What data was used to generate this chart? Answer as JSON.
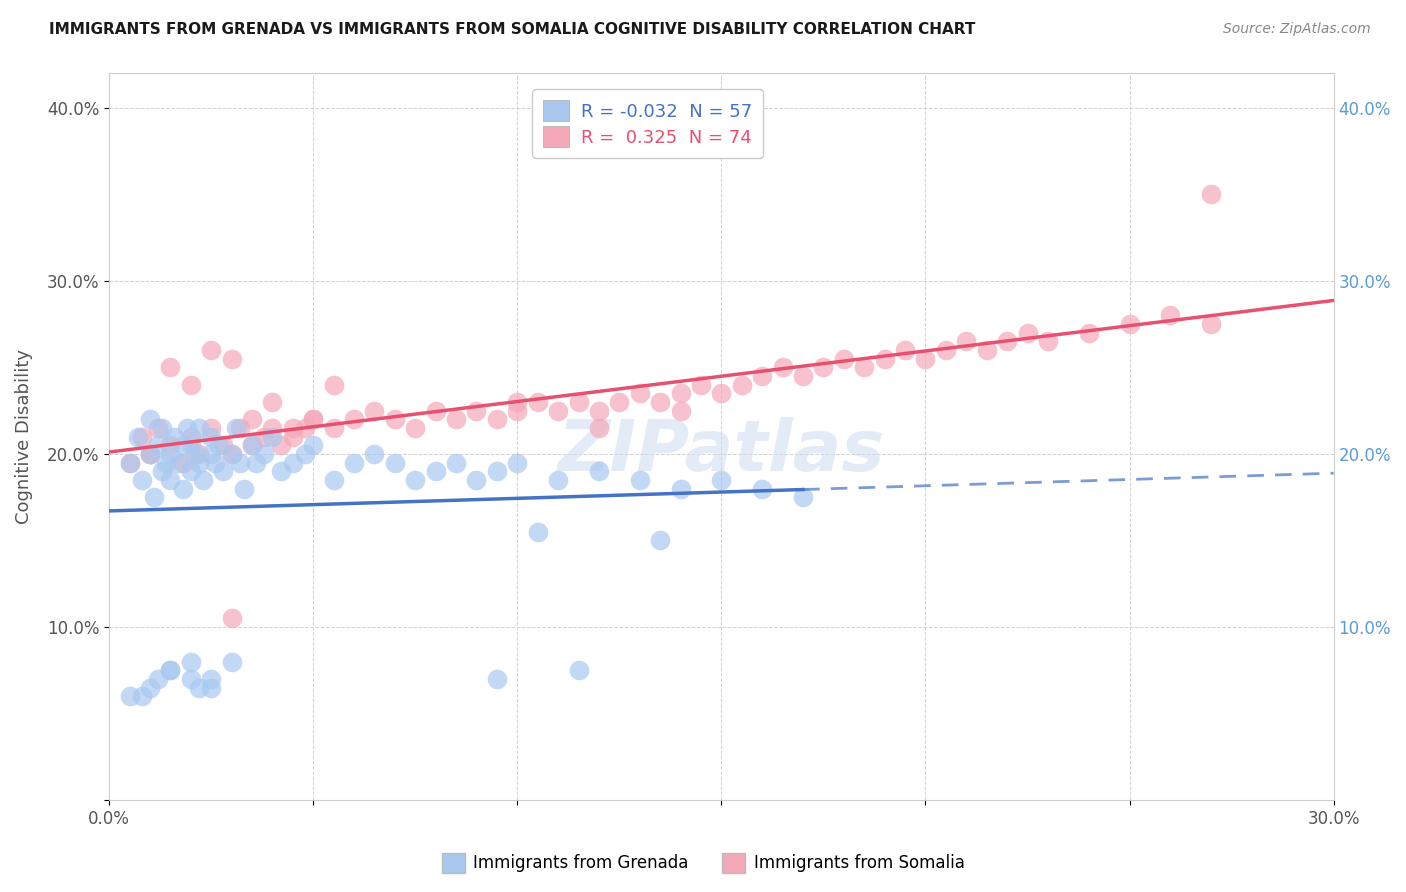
{
  "title": "IMMIGRANTS FROM GRENADA VS IMMIGRANTS FROM SOMALIA COGNITIVE DISABILITY CORRELATION CHART",
  "source_text": "Source: ZipAtlas.com",
  "ylabel": "Cognitive Disability",
  "x_min": 0.0,
  "x_max": 0.3,
  "y_min": 0.0,
  "y_max": 0.42,
  "x_ticks": [
    0.0,
    0.05,
    0.1,
    0.15,
    0.2,
    0.25,
    0.3
  ],
  "y_ticks": [
    0.0,
    0.1,
    0.2,
    0.3,
    0.4
  ],
  "legend_labels": [
    "Immigrants from Grenada",
    "Immigrants from Somalia"
  ],
  "R_grenada": -0.032,
  "N_grenada": 57,
  "R_somalia": 0.325,
  "N_somalia": 74,
  "color_grenada": "#a8c8f0",
  "color_somalia": "#f5a8b8",
  "line_color_grenada": "#4472c4",
  "line_color_somalia": "#e85070",
  "watermark": "ZIPatlas",
  "grenada_x": [
    0.005,
    0.007,
    0.008,
    0.01,
    0.01,
    0.011,
    0.012,
    0.013,
    0.013,
    0.014,
    0.015,
    0.015,
    0.016,
    0.017,
    0.018,
    0.018,
    0.019,
    0.02,
    0.02,
    0.021,
    0.022,
    0.022,
    0.023,
    0.025,
    0.025,
    0.026,
    0.027,
    0.028,
    0.03,
    0.031,
    0.032,
    0.033,
    0.035,
    0.036,
    0.038,
    0.04,
    0.042,
    0.045,
    0.048,
    0.05,
    0.055,
    0.06,
    0.065,
    0.07,
    0.075,
    0.08,
    0.085,
    0.09,
    0.095,
    0.1,
    0.11,
    0.12,
    0.13,
    0.14,
    0.15,
    0.16,
    0.17
  ],
  "grenada_y": [
    0.195,
    0.21,
    0.185,
    0.2,
    0.22,
    0.175,
    0.205,
    0.19,
    0.215,
    0.195,
    0.2,
    0.185,
    0.21,
    0.195,
    0.205,
    0.18,
    0.215,
    0.19,
    0.205,
    0.2,
    0.195,
    0.215,
    0.185,
    0.2,
    0.21,
    0.195,
    0.205,
    0.19,
    0.2,
    0.215,
    0.195,
    0.18,
    0.205,
    0.195,
    0.2,
    0.21,
    0.19,
    0.195,
    0.2,
    0.205,
    0.185,
    0.195,
    0.2,
    0.195,
    0.185,
    0.19,
    0.195,
    0.185,
    0.19,
    0.195,
    0.185,
    0.19,
    0.185,
    0.18,
    0.185,
    0.18,
    0.175
  ],
  "grenada_y_low": [
    0.06,
    0.065,
    0.07,
    0.075,
    0.08,
    0.065,
    0.07,
    0.06,
    0.075,
    0.07,
    0.065,
    0.08,
    0.07,
    0.075,
    0.15,
    0.155
  ],
  "grenada_x_low": [
    0.005,
    0.01,
    0.012,
    0.015,
    0.02,
    0.022,
    0.025,
    0.008,
    0.015,
    0.02,
    0.025,
    0.03,
    0.095,
    0.115,
    0.135,
    0.105
  ],
  "somalia_x": [
    0.005,
    0.008,
    0.01,
    0.012,
    0.015,
    0.018,
    0.02,
    0.022,
    0.025,
    0.028,
    0.03,
    0.032,
    0.035,
    0.038,
    0.04,
    0.042,
    0.045,
    0.048,
    0.05,
    0.055,
    0.06,
    0.065,
    0.07,
    0.075,
    0.08,
    0.085,
    0.09,
    0.095,
    0.1,
    0.105,
    0.11,
    0.115,
    0.12,
    0.125,
    0.13,
    0.135,
    0.14,
    0.145,
    0.15,
    0.155,
    0.16,
    0.165,
    0.17,
    0.175,
    0.18,
    0.185,
    0.19,
    0.195,
    0.2,
    0.205,
    0.21,
    0.215,
    0.22,
    0.225,
    0.23,
    0.24,
    0.25,
    0.26,
    0.27,
    0.01,
    0.015,
    0.02,
    0.025,
    0.03,
    0.035,
    0.04,
    0.045,
    0.05,
    0.055,
    0.1,
    0.12,
    0.14,
    0.27,
    0.03
  ],
  "somalia_y": [
    0.195,
    0.21,
    0.2,
    0.215,
    0.205,
    0.195,
    0.21,
    0.2,
    0.215,
    0.205,
    0.2,
    0.215,
    0.205,
    0.21,
    0.215,
    0.205,
    0.21,
    0.215,
    0.22,
    0.215,
    0.22,
    0.225,
    0.22,
    0.215,
    0.225,
    0.22,
    0.225,
    0.22,
    0.225,
    0.23,
    0.225,
    0.23,
    0.225,
    0.23,
    0.235,
    0.23,
    0.235,
    0.24,
    0.235,
    0.24,
    0.245,
    0.25,
    0.245,
    0.25,
    0.255,
    0.25,
    0.255,
    0.26,
    0.255,
    0.26,
    0.265,
    0.26,
    0.265,
    0.27,
    0.265,
    0.27,
    0.275,
    0.28,
    0.275,
    0.2,
    0.25,
    0.24,
    0.26,
    0.255,
    0.22,
    0.23,
    0.215,
    0.22,
    0.24,
    0.23,
    0.215,
    0.225,
    0.35,
    0.105
  ]
}
